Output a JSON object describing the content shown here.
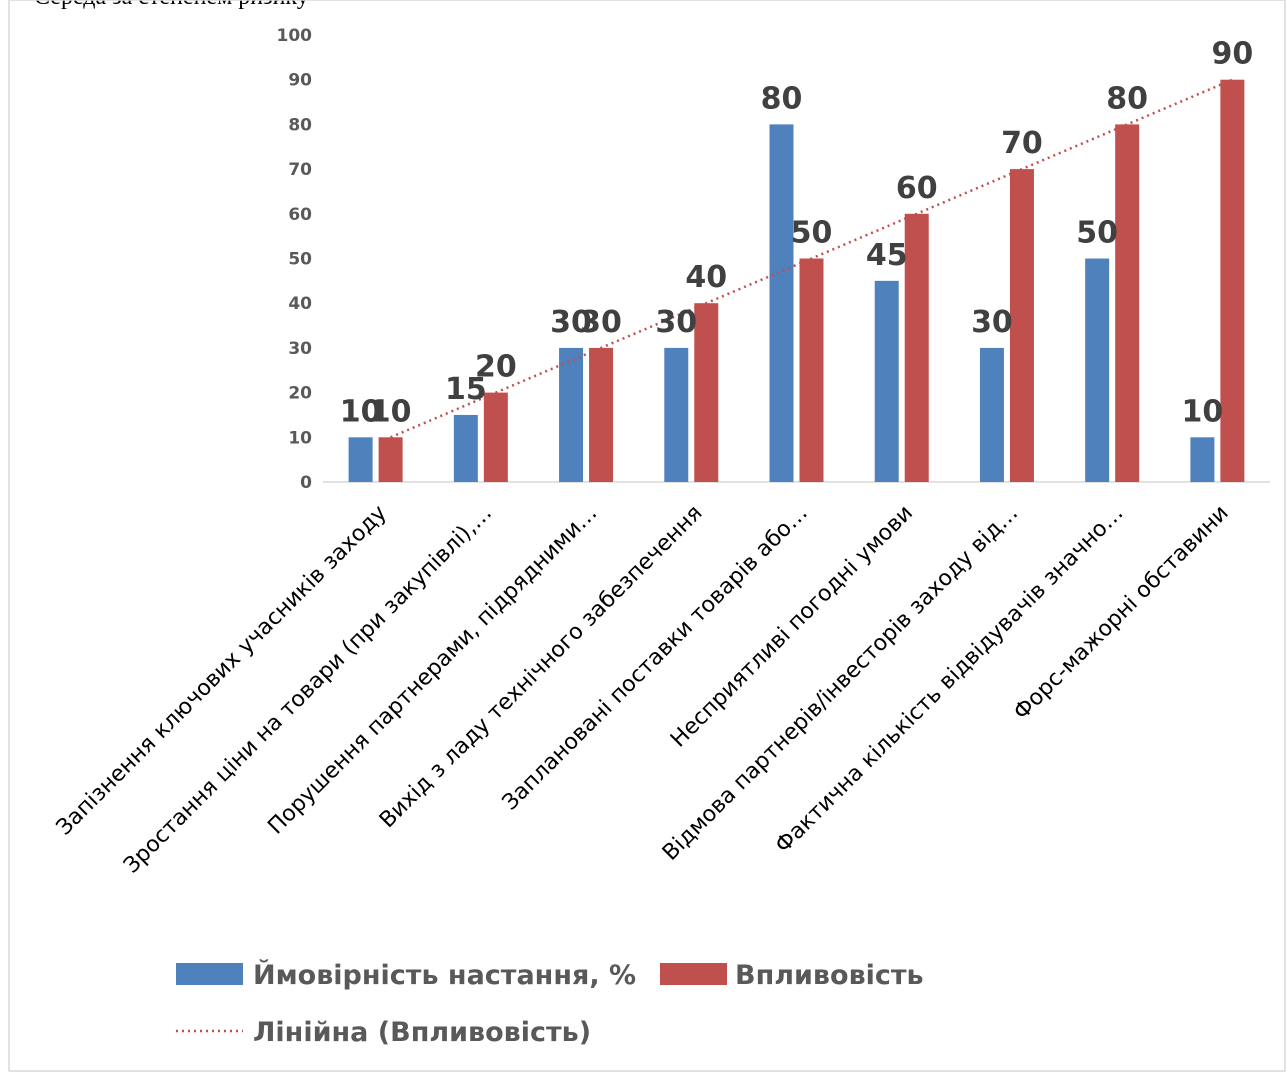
{
  "page": {
    "top_text": "Середа за степенем ризику"
  },
  "chart_data": {
    "type": "bar",
    "categories": [
      "Запізнення ключових учасників заходу",
      "Зростання ціни на товари (при закупівлі),…",
      "Порушення партнерами, підрядними…",
      "Вихід з ладу технічного забезпечення",
      "Заплановані поставки товарів або…",
      "Несприятливі погодні умови",
      "Відмова партнерів/інвесторів заходу від…",
      "Фактична кількість відвідувачів значно…",
      "Форс-мажорні обставини"
    ],
    "series": [
      {
        "name": "Ймовірність настання, %",
        "values": [
          10,
          15,
          30,
          30,
          80,
          45,
          30,
          50,
          10
        ],
        "color": "#4F81BD"
      },
      {
        "name": "Впливовість",
        "values": [
          10,
          20,
          30,
          40,
          50,
          60,
          70,
          80,
          90
        ],
        "color": "#C0504D"
      }
    ],
    "trendline": {
      "name": "Лінійна (Впливовість)",
      "series_index": 1,
      "style": "dotted",
      "color": "#C0504D",
      "from": 10,
      "to": 90
    },
    "ylim": [
      0,
      100
    ],
    "yticks": [
      "0",
      "10",
      "20",
      "30",
      "40",
      "50",
      "60",
      "70",
      "80",
      "90",
      "100"
    ],
    "data_labels": true,
    "grid": false,
    "legend_position": "bottom",
    "title": "",
    "xlabel": "",
    "ylabel": ""
  }
}
